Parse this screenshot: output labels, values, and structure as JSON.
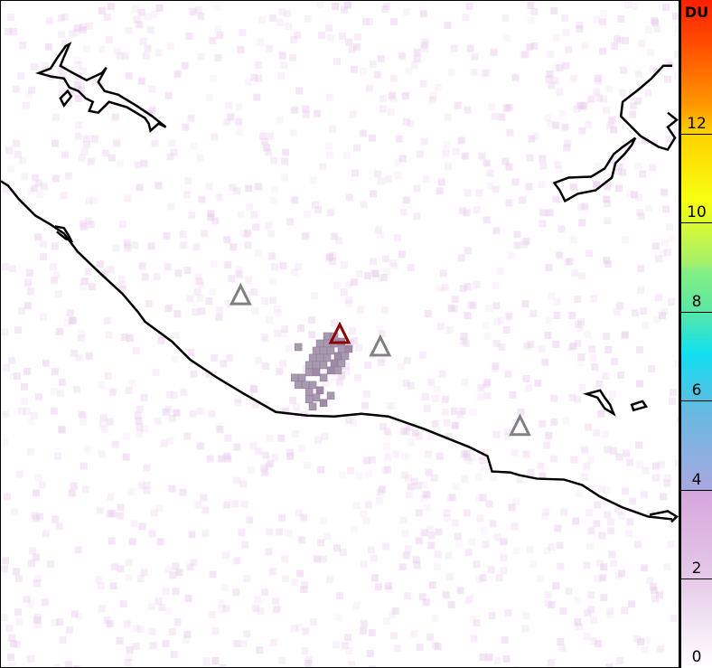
{
  "colorbar": {
    "unit": "DU",
    "range": [
      0,
      15
    ],
    "ticks": [
      "0",
      "2",
      "4",
      "6",
      "8",
      "10",
      "12"
    ],
    "colors": [
      "#ffffff",
      "#e6cbe9",
      "#d6a6dc",
      "#6ab8e0",
      "#10e0f0",
      "#88ef80",
      "#f8ff10",
      "#ff9a00",
      "#ff2000"
    ]
  },
  "map": {
    "coastline_color": "#000000",
    "volcano_markers": [
      {
        "state": "inactive",
        "color": "#808080"
      },
      {
        "state": "active",
        "color": "#8b0000"
      },
      {
        "state": "inactive",
        "color": "#808080"
      },
      {
        "state": "inactive",
        "color": "#808080"
      }
    ],
    "plume_color": "#a898b0"
  }
}
